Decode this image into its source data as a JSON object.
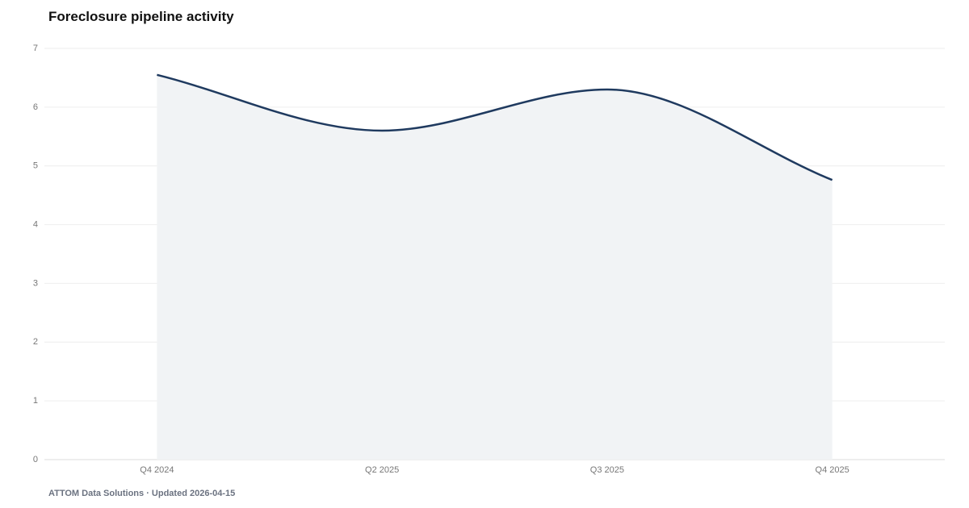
{
  "chart_data": {
    "type": "area",
    "title": "Foreclosure pipeline activity",
    "categories": [
      "Q4 2024",
      "Q2 2025",
      "Q3 2025",
      "Q4 2025"
    ],
    "values": [
      6.55,
      5.6,
      6.3,
      4.76
    ],
    "color": "#1f3a5f",
    "fill": "#f1f3f5",
    "ylim": [
      0,
      7
    ],
    "yticks": [
      0,
      1,
      2,
      3,
      4,
      5,
      6,
      7
    ],
    "grid": true,
    "source": "ATTOM Data Solutions · Updated 2026-04-15"
  }
}
